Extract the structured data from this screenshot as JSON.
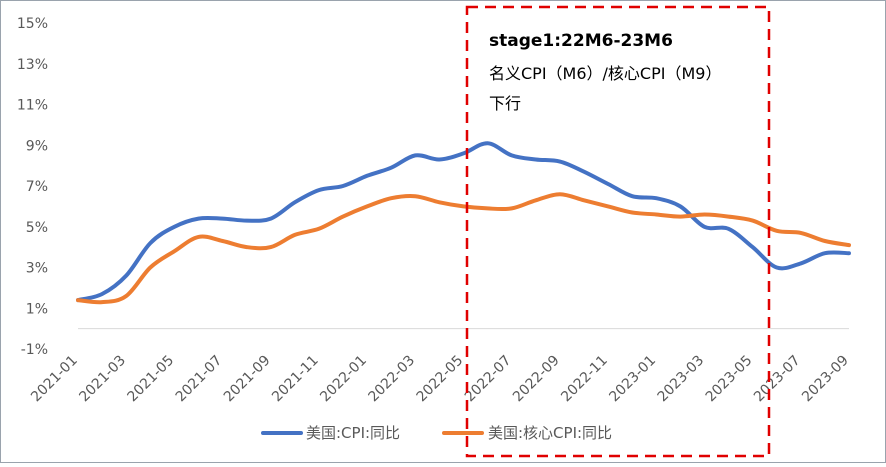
{
  "chart_data": {
    "type": "line",
    "title": "",
    "xlabel": "",
    "ylabel": "",
    "ylim": [
      -1,
      15
    ],
    "y_ticks": [
      "-1%",
      "1%",
      "3%",
      "5%",
      "7%",
      "9%",
      "11%",
      "13%",
      "15%"
    ],
    "x": [
      "2021-01",
      "2021-02",
      "2021-03",
      "2021-04",
      "2021-05",
      "2021-06",
      "2021-07",
      "2021-08",
      "2021-09",
      "2021-10",
      "2021-11",
      "2021-12",
      "2022-01",
      "2022-02",
      "2022-03",
      "2022-04",
      "2022-05",
      "2022-06",
      "2022-07",
      "2022-08",
      "2022-09",
      "2022-10",
      "2022-11",
      "2022-12",
      "2023-01",
      "2023-02",
      "2023-03",
      "2023-04",
      "2023-05",
      "2023-06",
      "2023-07",
      "2023-08",
      "2023-09"
    ],
    "x_tick_labels": [
      "2021-01",
      "2021-03",
      "2021-05",
      "2021-07",
      "2021-09",
      "2021-11",
      "2022-01",
      "2022-03",
      "2022-05",
      "2022-07",
      "2022-09",
      "2022-11",
      "2023-01",
      "2023-03",
      "2023-05",
      "2023-07",
      "2023-09"
    ],
    "grid": false,
    "legend_position": "bottom",
    "series": [
      {
        "name": "美国:CPI:同比",
        "color": "#4472C4",
        "values": [
          1.4,
          1.7,
          2.6,
          4.2,
          5.0,
          5.4,
          5.4,
          5.3,
          5.4,
          6.2,
          6.8,
          7.0,
          7.5,
          7.9,
          8.5,
          8.3,
          8.6,
          9.1,
          8.5,
          8.3,
          8.2,
          7.7,
          7.1,
          6.5,
          6.4,
          6.0,
          5.0,
          4.9,
          4.0,
          3.0,
          3.2,
          3.7,
          3.7
        ]
      },
      {
        "name": "美国:核心CPI:同比",
        "color": "#ED7D31",
        "values": [
          1.4,
          1.3,
          1.6,
          3.0,
          3.8,
          4.5,
          4.3,
          4.0,
          4.0,
          4.6,
          4.9,
          5.5,
          6.0,
          6.4,
          6.5,
          6.2,
          6.0,
          5.9,
          5.9,
          6.3,
          6.6,
          6.3,
          6.0,
          5.7,
          5.6,
          5.5,
          5.6,
          5.5,
          5.3,
          4.8,
          4.7,
          4.3,
          4.1
        ]
      }
    ],
    "annotation": {
      "title": "stage1:22M6-23M6",
      "line1": "名义CPI（M6）/核心CPI（M9）",
      "line2": "下行",
      "border_color": "#E00000"
    }
  }
}
